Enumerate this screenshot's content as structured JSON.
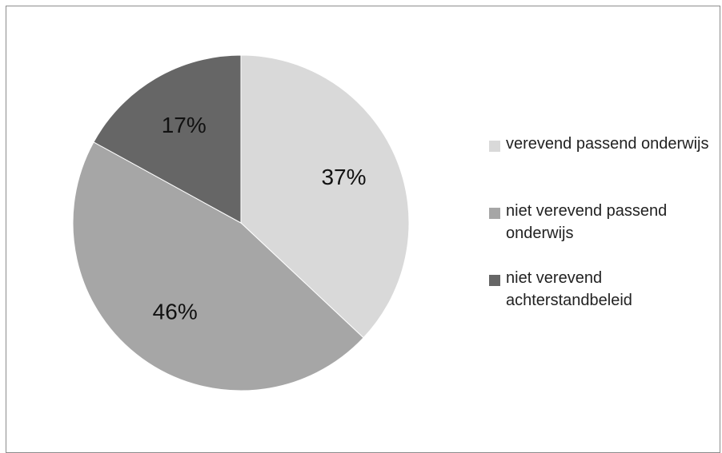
{
  "chart_data": {
    "type": "pie",
    "categories": [
      "verevend passend onderwijs",
      "niet verevend passend onderwijs",
      "niet verevend achterstandbeleid"
    ],
    "values": [
      37,
      46,
      17
    ],
    "labels": [
      "37%",
      "46%",
      "17%"
    ],
    "legend": {
      "placement": "right",
      "entries": [
        {
          "label": "verevend passend onderwijs",
          "color": "#d9d9d9"
        },
        {
          "label": "niet verevend passend onderwijs",
          "color": "#a6a6a6"
        },
        {
          "label": "niet verevend achterstandbeleid",
          "color": "#666666"
        }
      ]
    },
    "colors": [
      "#d9d9d9",
      "#a6a6a6",
      "#666666"
    ]
  }
}
